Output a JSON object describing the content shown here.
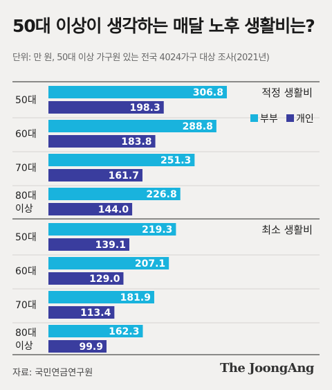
{
  "header": {
    "title": "50대 이상이 생각하는 매달 노후 생활비는?",
    "subtitle": "단위: 만 원, 50대 이상 가구원 있는 전국 4024가구 대상 조사(2021년)"
  },
  "footer": {
    "source": "자료: 국민연금연구원",
    "brand": "The JoongAng"
  },
  "colors": {
    "couple": "#19b3dd",
    "individual": "#3a3d9e",
    "background": "#f2f1ef"
  },
  "chart_data": {
    "type": "bar",
    "orientation": "horizontal",
    "legend": [
      {
        "name": "부부",
        "color": "#19b3dd"
      },
      {
        "name": "개인",
        "color": "#3a3d9e"
      }
    ],
    "legend_placement": "top-right",
    "xlim": [
      0,
      330
    ],
    "grid": false,
    "sections": [
      {
        "title": "적정 생활비",
        "categories": [
          [
            "50대"
          ],
          [
            "60대"
          ],
          [
            "70대"
          ],
          [
            "80대",
            "이상"
          ]
        ],
        "series": [
          {
            "name": "부부",
            "values": [
              306.8,
              288.8,
              251.3,
              226.8
            ]
          },
          {
            "name": "개인",
            "values": [
              198.3,
              183.8,
              161.7,
              144.0
            ]
          }
        ]
      },
      {
        "title": "최소 생활비",
        "categories": [
          [
            "50대"
          ],
          [
            "60대"
          ],
          [
            "70대"
          ],
          [
            "80대",
            "이상"
          ]
        ],
        "series": [
          {
            "name": "부부",
            "values": [
              219.3,
              207.1,
              181.9,
              162.3
            ]
          },
          {
            "name": "개인",
            "values": [
              139.1,
              129.0,
              113.4,
              99.9
            ]
          }
        ]
      }
    ]
  }
}
